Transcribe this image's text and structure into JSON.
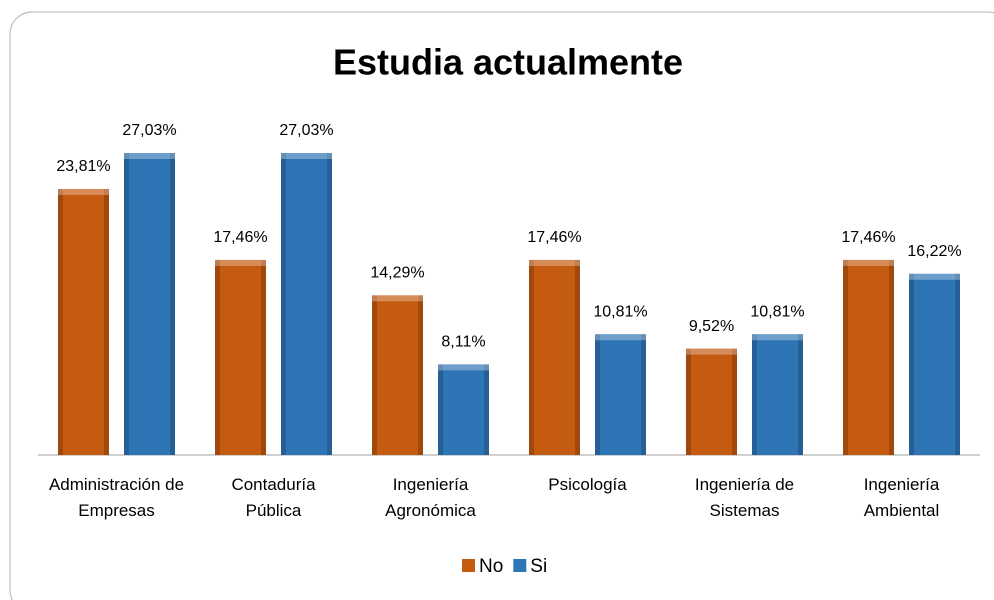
{
  "chart_data": {
    "type": "bar",
    "title": "Estudia actualmente",
    "categories": [
      "Administración de Empresas",
      "Contaduría Pública",
      "Ingeniería Agronómica",
      "Psicología",
      "Ingeniería de Sistemas",
      "Ingeniería Ambiental"
    ],
    "series": [
      {
        "name": "No",
        "color": "#c55a11",
        "values": [
          23.81,
          17.46,
          14.29,
          17.46,
          9.52,
          17.46
        ],
        "value_labels": [
          "23,81%",
          "17,46%",
          "14,29%",
          "17,46%",
          "9,52%",
          "17,46%"
        ]
      },
      {
        "name": "Si",
        "color": "#2e75b6",
        "values": [
          27.03,
          27.03,
          8.11,
          10.81,
          10.81,
          16.22
        ],
        "value_labels": [
          "27,03%",
          "27,03%",
          "8,11%",
          "10,81%",
          "10,81%",
          "16,22%"
        ]
      }
    ],
    "legend": "bottom"
  }
}
